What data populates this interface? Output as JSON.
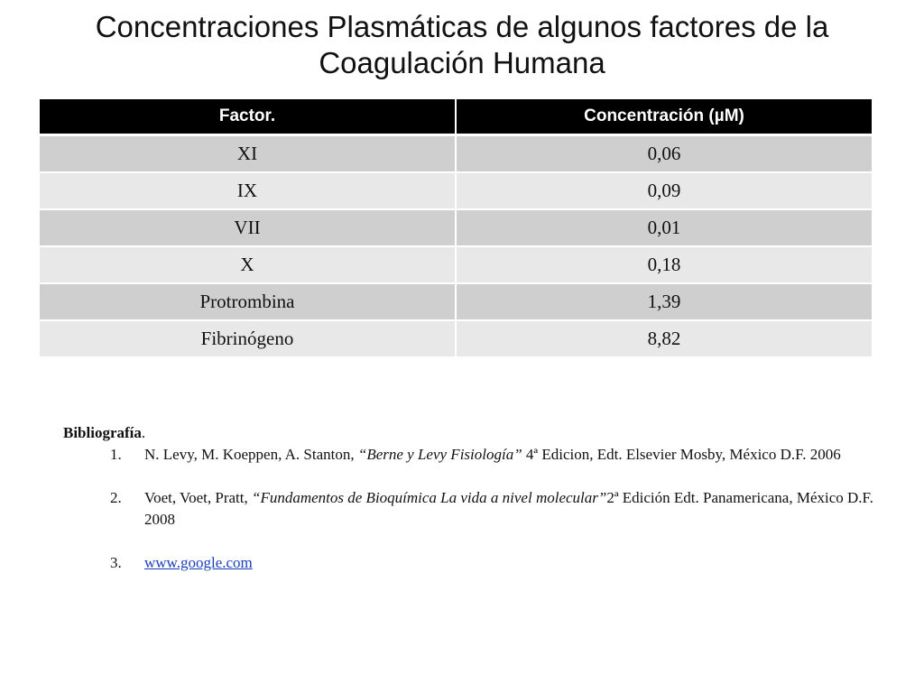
{
  "title_line1": "Concentraciones Plasmáticas de algunos factores de la",
  "title_line2": "Coagulación Humana",
  "table": {
    "headers": [
      "Factor.",
      "Concentración (µM)"
    ],
    "rows": [
      [
        "XI",
        "0,06"
      ],
      [
        "IX",
        "0,09"
      ],
      [
        "VII",
        "0,01"
      ],
      [
        "X",
        "0,18"
      ],
      [
        "Protrombina",
        "1,39"
      ],
      [
        "Fibrinógeno",
        "8,82"
      ]
    ]
  },
  "bibliography": {
    "heading": "Bibliografía",
    "heading_suffix": ".",
    "refs": [
      {
        "num": "1.",
        "pre": "N. Levy, M. Koeppen, A. Stanton, ",
        "italic": "“Berne y Levy Fisiología”",
        "post": " 4ª Edicion, Edt. Elsevier Mosby, México D.F. 2006"
      },
      {
        "num": "2.",
        "pre": "Voet, Voet, Pratt, ",
        "italic": "“Fundamentos de Bioquímica La vida a nivel molecular”",
        "post": "2ª Edición Edt. Panamericana, México D.F. 2008"
      },
      {
        "num": "3.",
        "link": "www.google.com"
      }
    ]
  },
  "colors": {
    "header_bg": "#000000",
    "row_dark": "#cfcfcf",
    "row_light": "#e8e8e8",
    "link": "#1a3fbf"
  }
}
